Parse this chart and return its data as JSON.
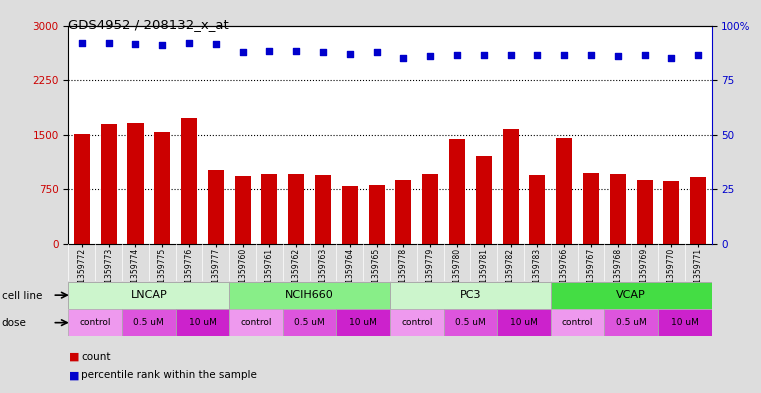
{
  "title": "GDS4952 / 208132_x_at",
  "samples": [
    "GSM1359772",
    "GSM1359773",
    "GSM1359774",
    "GSM1359775",
    "GSM1359776",
    "GSM1359777",
    "GSM1359760",
    "GSM1359761",
    "GSM1359762",
    "GSM1359763",
    "GSM1359764",
    "GSM1359765",
    "GSM1359778",
    "GSM1359779",
    "GSM1359780",
    "GSM1359781",
    "GSM1359782",
    "GSM1359783",
    "GSM1359766",
    "GSM1359767",
    "GSM1359768",
    "GSM1359769",
    "GSM1359770",
    "GSM1359771"
  ],
  "counts": [
    1510,
    1640,
    1660,
    1540,
    1730,
    1010,
    935,
    960,
    960,
    940,
    795,
    805,
    875,
    960,
    1440,
    1210,
    1580,
    945,
    1455,
    970,
    960,
    875,
    860,
    915
  ],
  "percentile_left": [
    2760,
    2760,
    2740,
    2730,
    2760,
    2740,
    2630,
    2650,
    2650,
    2630,
    2610,
    2630,
    2560,
    2580,
    2600,
    2600,
    2600,
    2600,
    2600,
    2590,
    2580,
    2600,
    2560,
    2590
  ],
  "cell_lines": [
    {
      "name": "LNCAP",
      "start": 0,
      "end": 6
    },
    {
      "name": "NCIH660",
      "start": 6,
      "end": 12
    },
    {
      "name": "PC3",
      "start": 12,
      "end": 18
    },
    {
      "name": "VCAP",
      "start": 18,
      "end": 24
    }
  ],
  "cell_line_colors": [
    "#ccf5cc",
    "#88ee88",
    "#ccf5cc",
    "#44dd44"
  ],
  "dose_pattern": [
    {
      "label": "control",
      "color": "#ee99ee",
      "start": 0,
      "end": 2
    },
    {
      "label": "0.5 uM",
      "color": "#dd55dd",
      "start": 2,
      "end": 4
    },
    {
      "label": "10 uM",
      "color": "#cc22cc",
      "start": 4,
      "end": 6
    }
  ],
  "bar_color": "#cc0000",
  "dot_color": "#0000cc",
  "ylim_left": [
    0,
    3000
  ],
  "ylim_right": [
    0,
    100
  ],
  "yticks_left": [
    0,
    750,
    1500,
    2250,
    3000
  ],
  "yticks_right": [
    0,
    25,
    50,
    75,
    100
  ],
  "hlines": [
    750,
    1500,
    2250
  ],
  "bg_color": "#dddddd",
  "plot_bg": "#ffffff",
  "xtick_bg": "#cccccc"
}
